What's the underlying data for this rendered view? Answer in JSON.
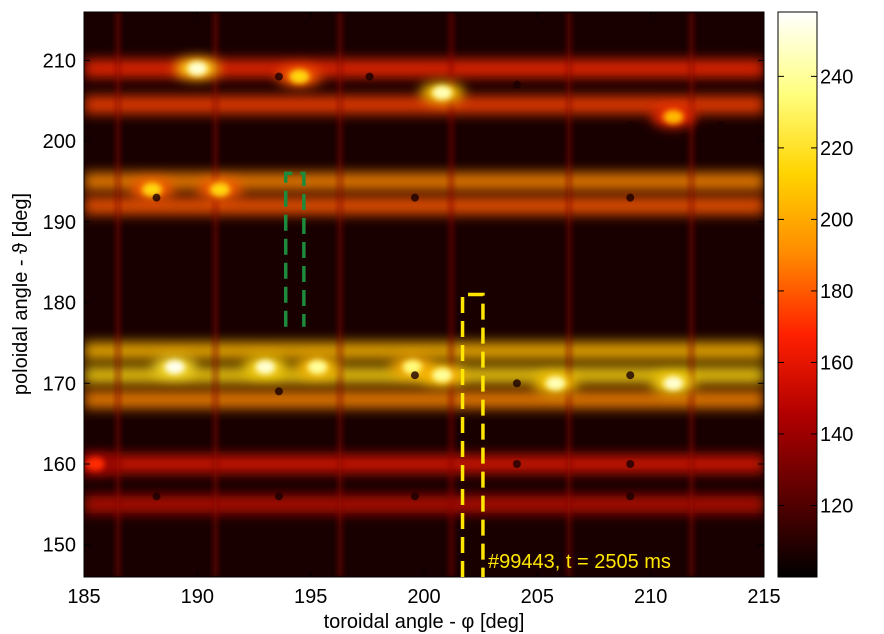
{
  "chart_data": {
    "type": "heatmap",
    "title": "",
    "xlabel": "toroidal angle -  φ [deg]",
    "ylabel": "poloidal angle -  ϑ [deg]",
    "xlim": [
      185,
      215
    ],
    "ylim": [
      146,
      216
    ],
    "x_ticks": [
      "185",
      "190",
      "195",
      "200",
      "205",
      "210",
      "215"
    ],
    "x_tick_values": [
      185,
      190,
      195,
      200,
      205,
      210,
      215
    ],
    "y_ticks": [
      "150",
      "160",
      "170",
      "180",
      "190",
      "200",
      "210"
    ],
    "y_tick_values": [
      150,
      160,
      170,
      180,
      190,
      200,
      210
    ],
    "colorbar": {
      "range": [
        100,
        258
      ],
      "ticks": [
        "120",
        "140",
        "160",
        "180",
        "200",
        "220",
        "240"
      ],
      "tick_values": [
        120,
        140,
        160,
        180,
        200,
        220,
        240
      ],
      "colormap": "hot",
      "colors": [
        "#000000",
        "#5a0000",
        "#b00000",
        "#ff2000",
        "#ff8a00",
        "#ffd400",
        "#ffff80",
        "#ffffff"
      ]
    },
    "tile_boundaries_phi": [
      186.5,
      190.8,
      196.3,
      201.2,
      206.4,
      211.8
    ],
    "bright_bands_theta": [
      {
        "theta": 209,
        "value": 170
      },
      {
        "theta": 204.5,
        "value": 175
      },
      {
        "theta": 195,
        "value": 190
      },
      {
        "theta": 192,
        "value": 180
      },
      {
        "theta": 174,
        "value": 205
      },
      {
        "theta": 171,
        "value": 215
      },
      {
        "theta": 168,
        "value": 190
      },
      {
        "theta": 160,
        "value": 160
      },
      {
        "theta": 155,
        "value": 150
      }
    ],
    "hot_spots": [
      {
        "phi": 190.0,
        "theta": 209,
        "value": 250
      },
      {
        "phi": 194.5,
        "theta": 208,
        "value": 215
      },
      {
        "phi": 200.8,
        "theta": 206,
        "value": 245
      },
      {
        "phi": 211.0,
        "theta": 203,
        "value": 205
      },
      {
        "phi": 188.0,
        "theta": 194,
        "value": 215
      },
      {
        "phi": 191.0,
        "theta": 194,
        "value": 215
      },
      {
        "phi": 189.0,
        "theta": 172,
        "value": 255
      },
      {
        "phi": 193.0,
        "theta": 172,
        "value": 250
      },
      {
        "phi": 195.3,
        "theta": 172,
        "value": 240
      },
      {
        "phi": 199.5,
        "theta": 172,
        "value": 235
      },
      {
        "phi": 200.8,
        "theta": 171,
        "value": 240
      },
      {
        "phi": 205.8,
        "theta": 170,
        "value": 245
      },
      {
        "phi": 211.0,
        "theta": 170,
        "value": 250
      },
      {
        "phi": 185.5,
        "theta": 160,
        "value": 170
      }
    ],
    "annotations": [
      {
        "text": "#99443,  t = 2505  ms",
        "color": "#ffe600"
      }
    ],
    "markers": [
      {
        "name": "green dashed box",
        "color": "#1e8a3c",
        "phi": [
          193.9,
          194.7
        ],
        "theta": [
          177,
          196
        ]
      },
      {
        "name": "yellow dashed box",
        "color": "#ffe600",
        "phi": [
          201.7,
          202.6
        ],
        "theta": [
          146,
          181
        ]
      }
    ]
  }
}
